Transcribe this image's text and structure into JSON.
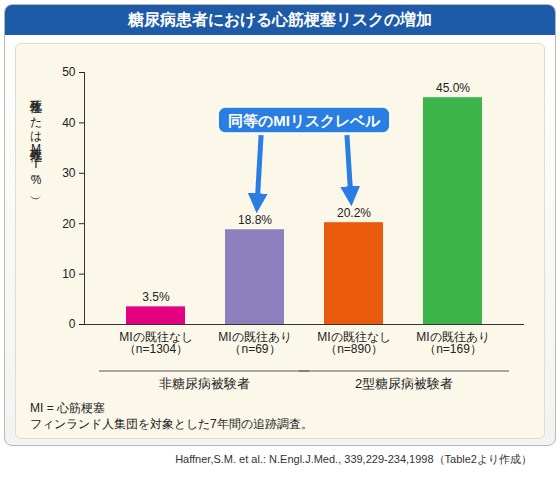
{
  "chart_data": {
    "type": "bar",
    "title": "糖尿病患者における心筋梗塞リスクの増加",
    "ylabel": "致死性または非致死性MI（%）",
    "categories": [
      "MIの既往なし\n（n=1304）",
      "MIの既往あり\n（n=69）",
      "MIの既往なし\n（n=890）",
      "MIの既往あり\n（n=169）"
    ],
    "values": [
      3.5,
      18.8,
      20.2,
      45.0
    ],
    "value_labels": [
      "3.5%",
      "18.8%",
      "20.2%",
      "45.0%"
    ],
    "data_labels": true,
    "colors": [
      "#e4007f",
      "#8e80bf",
      "#ea5a0c",
      "#3cb44a"
    ],
    "ylim": [
      0,
      50
    ],
    "yticks": [
      0,
      10,
      20,
      30,
      40,
      50
    ],
    "grid": false,
    "groups": [
      {
        "label": "非糖尿病被験者",
        "categories": [
          "MIの既往なし\n（n=1304）",
          "MIの既往あり\n（n=69）"
        ]
      },
      {
        "label": "2型糖尿病被験者",
        "categories": [
          "MIの既往なし\n（n=890）",
          "MIの既往あり\n（n=169）"
        ]
      }
    ],
    "annotations": [
      {
        "text": "同等のMIリスクレベル",
        "targets": [
          "MIの既往あり\n（n=69）",
          "MIの既往なし\n（n=890）"
        ]
      }
    ],
    "notes": [
      "MI = 心筋梗塞",
      "フィンランド人集団を対象とした7年間の追跡調査。"
    ],
    "source": "Haffner,S.M. et al.: N.Engl.J.Med., 339,229-234,1998（Table2より作成）"
  }
}
